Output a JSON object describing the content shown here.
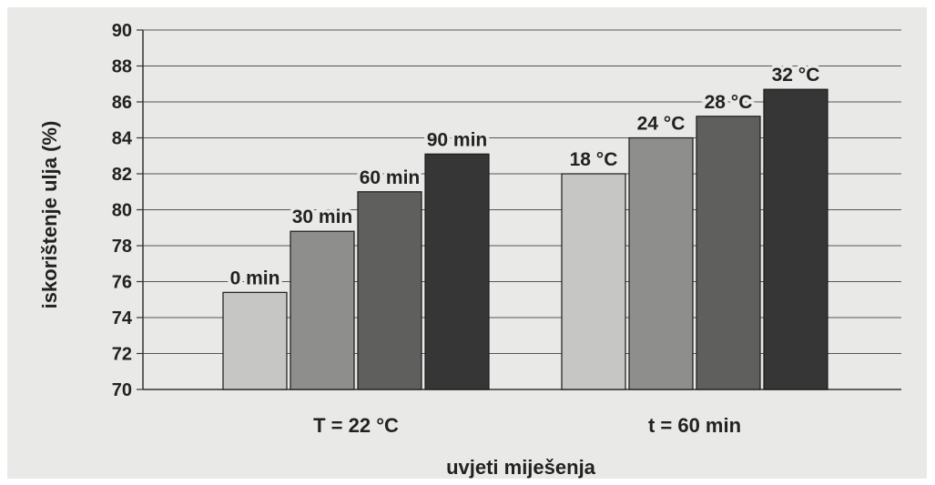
{
  "chart_data": {
    "type": "bar",
    "ylabel": "iskorištenje ulja (%)",
    "xlabel": "uvjeti miješenja",
    "ylim": [
      70,
      90
    ],
    "yticks": [
      "70",
      "72",
      "74",
      "76",
      "78",
      "80",
      "82",
      "84",
      "86",
      "88",
      "90"
    ],
    "grid": true,
    "groups": [
      {
        "label": "T = 22 °C",
        "bars": [
          {
            "label": "0 min",
            "value": 75.4,
            "color": "#c6c6c4"
          },
          {
            "label": "30 min",
            "value": 78.8,
            "color": "#8e8e8c"
          },
          {
            "label": "60 min",
            "value": 81.0,
            "color": "#5f5f5d"
          },
          {
            "label": "90 min",
            "value": 83.1,
            "color": "#363636"
          }
        ]
      },
      {
        "label": "t = 60 min",
        "bars": [
          {
            "label": "18 °C",
            "value": 82.0,
            "color": "#c6c6c4"
          },
          {
            "label": "24 °C",
            "value": 84.0,
            "color": "#8e8e8c"
          },
          {
            "label": "28 °C",
            "value": 85.2,
            "color": "#5f5f5d"
          },
          {
            "label": "32 °C",
            "value": 86.7,
            "color": "#363636"
          }
        ]
      }
    ]
  }
}
